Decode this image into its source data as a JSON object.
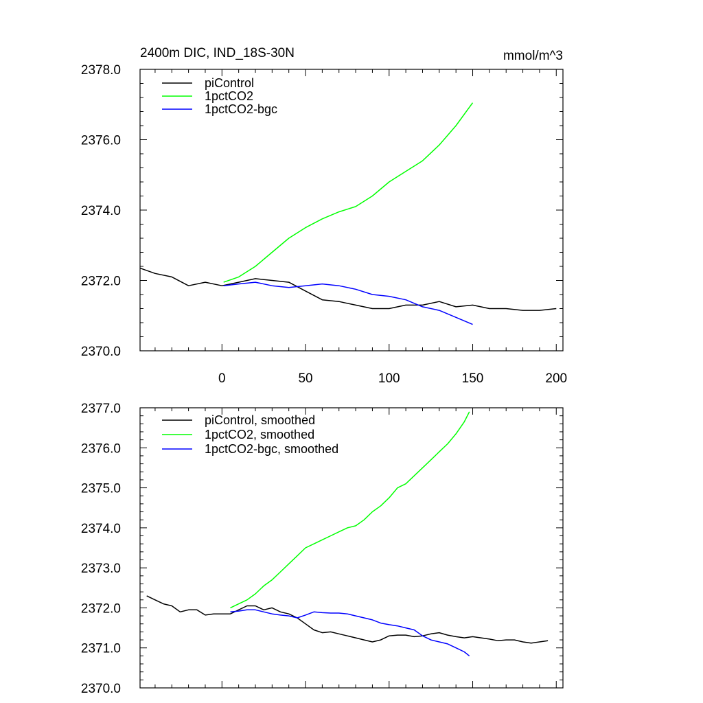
{
  "chart_data": [
    {
      "type": "line",
      "title": "2400m DIC, IND_18S-30N",
      "units": "mmol/m^3",
      "xlabel": "",
      "ylabel": "",
      "xlim": [
        -49,
        204
      ],
      "ylim": [
        2370.0,
        2378.0
      ],
      "x_ticks": [
        0,
        50,
        100,
        150,
        200
      ],
      "x_tick_labels": [
        "0",
        "50",
        "100",
        "150",
        "200"
      ],
      "y_ticks": [
        2370.0,
        2372.0,
        2374.0,
        2376.0,
        2378.0
      ],
      "y_tick_labels": [
        "2370.0",
        "2372.0",
        "2374.0",
        "2376.0",
        "2378.0"
      ],
      "grid": false,
      "legend_position": "top-left",
      "series": [
        {
          "name": "piControl",
          "color": "#000000",
          "x": [
            -49,
            -40,
            -30,
            -20,
            -10,
            0,
            10,
            20,
            30,
            40,
            50,
            60,
            70,
            80,
            90,
            100,
            110,
            120,
            130,
            140,
            150,
            160,
            170,
            180,
            190,
            200
          ],
          "y": [
            2372.35,
            2372.2,
            2372.1,
            2371.85,
            2371.95,
            2371.85,
            2371.95,
            2372.05,
            2372.0,
            2371.95,
            2371.7,
            2371.45,
            2371.4,
            2371.3,
            2371.2,
            2371.2,
            2371.3,
            2371.3,
            2371.4,
            2371.25,
            2371.3,
            2371.2,
            2371.2,
            2371.15,
            2371.15,
            2371.2
          ]
        },
        {
          "name": "1pctCO2",
          "color": "#00ff00",
          "x": [
            1,
            10,
            20,
            30,
            40,
            50,
            60,
            70,
            80,
            90,
            100,
            110,
            120,
            130,
            140,
            150
          ],
          "y": [
            2371.95,
            2372.1,
            2372.4,
            2372.8,
            2373.2,
            2373.5,
            2373.75,
            2373.95,
            2374.1,
            2374.4,
            2374.8,
            2375.1,
            2375.4,
            2375.85,
            2376.4,
            2377.05
          ]
        },
        {
          "name": "1pctCO2-bgc",
          "color": "#0000ff",
          "x": [
            1,
            10,
            20,
            30,
            40,
            50,
            60,
            70,
            80,
            90,
            100,
            110,
            120,
            130,
            140,
            150
          ],
          "y": [
            2371.85,
            2371.9,
            2371.95,
            2371.85,
            2371.8,
            2371.85,
            2371.9,
            2371.85,
            2371.75,
            2371.6,
            2371.55,
            2371.45,
            2371.25,
            2371.15,
            2370.95,
            2370.75
          ]
        }
      ]
    },
    {
      "type": "line",
      "title": "",
      "xlabel": "",
      "ylabel": "",
      "xlim": [
        -49,
        204
      ],
      "ylim": [
        2370.0,
        2377.0
      ],
      "x_ticks": [
        0,
        50,
        100,
        150,
        200
      ],
      "x_tick_labels": [],
      "y_ticks": [
        2370.0,
        2371.0,
        2372.0,
        2373.0,
        2374.0,
        2375.0,
        2376.0,
        2377.0
      ],
      "y_tick_labels": [
        "2370.0",
        "2371.0",
        "2372.0",
        "2373.0",
        "2374.0",
        "2375.0",
        "2376.0",
        "2377.0"
      ],
      "grid": false,
      "legend_position": "top-left",
      "series": [
        {
          "name": "piControl, smoothed",
          "color": "#000000",
          "x": [
            -45,
            -40,
            -35,
            -30,
            -25,
            -20,
            -15,
            -10,
            -5,
            0,
            5,
            10,
            15,
            20,
            25,
            30,
            35,
            40,
            45,
            50,
            55,
            60,
            65,
            70,
            75,
            80,
            85,
            90,
            95,
            100,
            105,
            110,
            115,
            120,
            125,
            130,
            135,
            140,
            145,
            150,
            155,
            160,
            165,
            170,
            175,
            180,
            185,
            190,
            195
          ],
          "y": [
            2372.3,
            2372.2,
            2372.1,
            2372.05,
            2371.9,
            2371.95,
            2371.95,
            2371.82,
            2371.85,
            2371.85,
            2371.85,
            2371.95,
            2372.05,
            2372.05,
            2371.95,
            2372.0,
            2371.9,
            2371.85,
            2371.75,
            2371.6,
            2371.45,
            2371.38,
            2371.4,
            2371.35,
            2371.3,
            2371.25,
            2371.2,
            2371.15,
            2371.2,
            2371.3,
            2371.32,
            2371.32,
            2371.28,
            2371.3,
            2371.35,
            2371.38,
            2371.32,
            2371.28,
            2371.25,
            2371.28,
            2371.25,
            2371.22,
            2371.18,
            2371.2,
            2371.2,
            2371.15,
            2371.12,
            2371.15,
            2371.18
          ]
        },
        {
          "name": "1pctCO2, smoothed",
          "color": "#00ff00",
          "x": [
            5,
            10,
            15,
            20,
            25,
            30,
            35,
            40,
            45,
            50,
            55,
            60,
            65,
            70,
            75,
            80,
            85,
            90,
            95,
            100,
            105,
            110,
            115,
            120,
            125,
            130,
            135,
            140,
            145,
            148
          ],
          "y": [
            2372.0,
            2372.1,
            2372.2,
            2372.35,
            2372.55,
            2372.7,
            2372.9,
            2373.1,
            2373.3,
            2373.5,
            2373.6,
            2373.7,
            2373.8,
            2373.9,
            2374.0,
            2374.05,
            2374.2,
            2374.4,
            2374.55,
            2374.75,
            2375.0,
            2375.1,
            2375.3,
            2375.5,
            2375.7,
            2375.9,
            2376.1,
            2376.35,
            2376.65,
            2376.9
          ]
        },
        {
          "name": "1pctCO2-bgc, smoothed",
          "color": "#0000ff",
          "x": [
            5,
            10,
            15,
            20,
            25,
            30,
            35,
            40,
            45,
            50,
            55,
            60,
            65,
            70,
            75,
            80,
            85,
            90,
            95,
            100,
            105,
            110,
            115,
            120,
            125,
            130,
            135,
            140,
            145,
            148
          ],
          "y": [
            2371.9,
            2371.92,
            2371.95,
            2371.95,
            2371.9,
            2371.85,
            2371.82,
            2371.8,
            2371.75,
            2371.82,
            2371.9,
            2371.88,
            2371.87,
            2371.87,
            2371.85,
            2371.8,
            2371.75,
            2371.7,
            2371.62,
            2371.58,
            2371.55,
            2371.5,
            2371.45,
            2371.3,
            2371.2,
            2371.15,
            2371.1,
            2371.0,
            2370.9,
            2370.8
          ]
        }
      ]
    }
  ]
}
